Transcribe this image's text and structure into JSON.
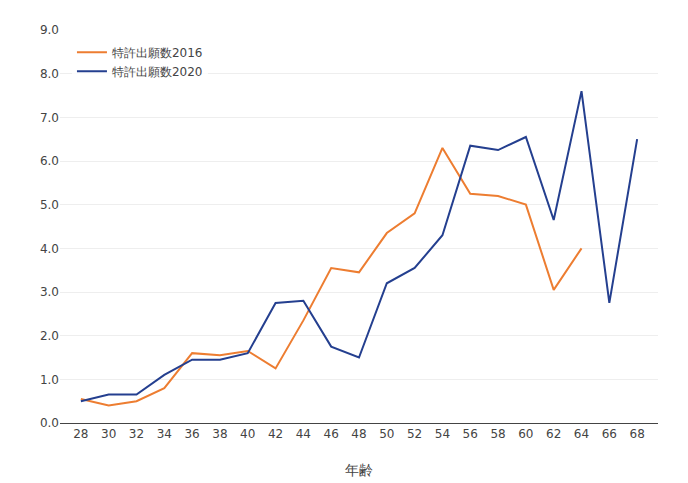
{
  "chart_data": {
    "type": "line",
    "x": [
      28,
      30,
      32,
      34,
      36,
      38,
      40,
      42,
      44,
      46,
      48,
      50,
      52,
      54,
      56,
      58,
      60,
      62,
      64,
      66,
      68
    ],
    "series": [
      {
        "name": "特許出願数2016",
        "color": "#ED7D31",
        "values": [
          0.55,
          0.4,
          0.5,
          0.8,
          1.6,
          1.55,
          1.65,
          1.25,
          2.35,
          3.55,
          3.45,
          4.35,
          4.8,
          6.3,
          5.25,
          5.2,
          5.0,
          3.05,
          4.0,
          null,
          null
        ]
      },
      {
        "name": "特許出願数2020",
        "color": "#243F8F",
        "values": [
          0.5,
          0.65,
          0.65,
          1.1,
          1.45,
          1.45,
          1.6,
          2.75,
          2.8,
          1.75,
          1.5,
          3.2,
          3.55,
          4.3,
          6.35,
          6.25,
          6.55,
          4.65,
          7.6,
          2.75,
          6.5
        ]
      }
    ],
    "xlabel": "年齢",
    "xlim": [
      26.5,
      69.5
    ],
    "xticks": [
      28,
      30,
      32,
      34,
      36,
      38,
      40,
      42,
      44,
      46,
      48,
      50,
      52,
      54,
      56,
      58,
      60,
      62,
      64,
      66,
      68
    ],
    "ylim": [
      0.0,
      9.0
    ],
    "yticks": [
      {
        "value": 0,
        "label": "0.0"
      },
      {
        "value": 1,
        "label": "1.0"
      },
      {
        "value": 2,
        "label": "2.0"
      },
      {
        "value": 3,
        "label": "3.0"
      },
      {
        "value": 4,
        "label": "4.0"
      },
      {
        "value": 5,
        "label": "5.0"
      },
      {
        "value": 6,
        "label": "6.0"
      },
      {
        "value": 7,
        "label": "7.0"
      },
      {
        "value": 8,
        "label": "8.0"
      },
      {
        "value": 9,
        "label": "9.0"
      }
    ],
    "grid": "y",
    "legend": "upper left"
  }
}
